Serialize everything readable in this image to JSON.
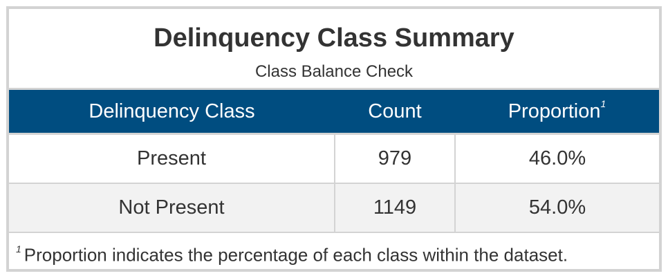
{
  "table": {
    "title": "Delinquency Class Summary",
    "subtitle": "Class Balance Check",
    "columns": [
      {
        "label": "Delinquency Class",
        "footnote_marker": ""
      },
      {
        "label": "Count",
        "footnote_marker": ""
      },
      {
        "label": "Proportion",
        "footnote_marker": "1"
      }
    ],
    "rows": [
      {
        "class": "Present",
        "count": "979",
        "proportion": "46.0%"
      },
      {
        "class": "Not Present",
        "count": "1149",
        "proportion": "54.0%"
      }
    ],
    "footnote": {
      "marker": "1",
      "text": "Proportion indicates the percentage of each class within the dataset."
    }
  },
  "colors": {
    "header_bg": "#004d80",
    "header_text": "#ffffff",
    "border": "#d3d3d3",
    "stripe": "#f2f2f2",
    "text": "#333333"
  }
}
